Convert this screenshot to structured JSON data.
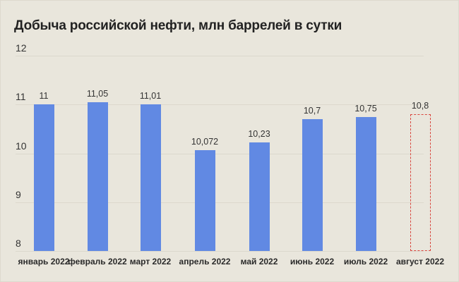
{
  "chart_data": {
    "type": "bar",
    "title": "Добыча российской нефти, млн баррелей в сутки",
    "xlabel": "",
    "ylabel": "",
    "ylim": [
      8,
      12
    ],
    "yticks": [
      "8",
      "9",
      "10",
      "11",
      "12"
    ],
    "grid": true,
    "categories": [
      "январь 2022",
      "февраль 2022",
      "март 2022",
      "апрель 2022",
      "май 2022",
      "июнь 2022",
      "июль 2022",
      "август 2022"
    ],
    "values": [
      11,
      11.05,
      11.01,
      10.072,
      10.23,
      10.7,
      10.75,
      10.8
    ],
    "value_labels": [
      "11",
      "11,05",
      "11,01",
      "10,072",
      "10,23",
      "10,7",
      "10,75",
      "10,8"
    ],
    "forecast": [
      false,
      false,
      false,
      false,
      false,
      false,
      false,
      true
    ],
    "colors": {
      "bar": "#6189e3",
      "forecast_border": "#d9463e",
      "background": "#e9e6dc"
    }
  }
}
